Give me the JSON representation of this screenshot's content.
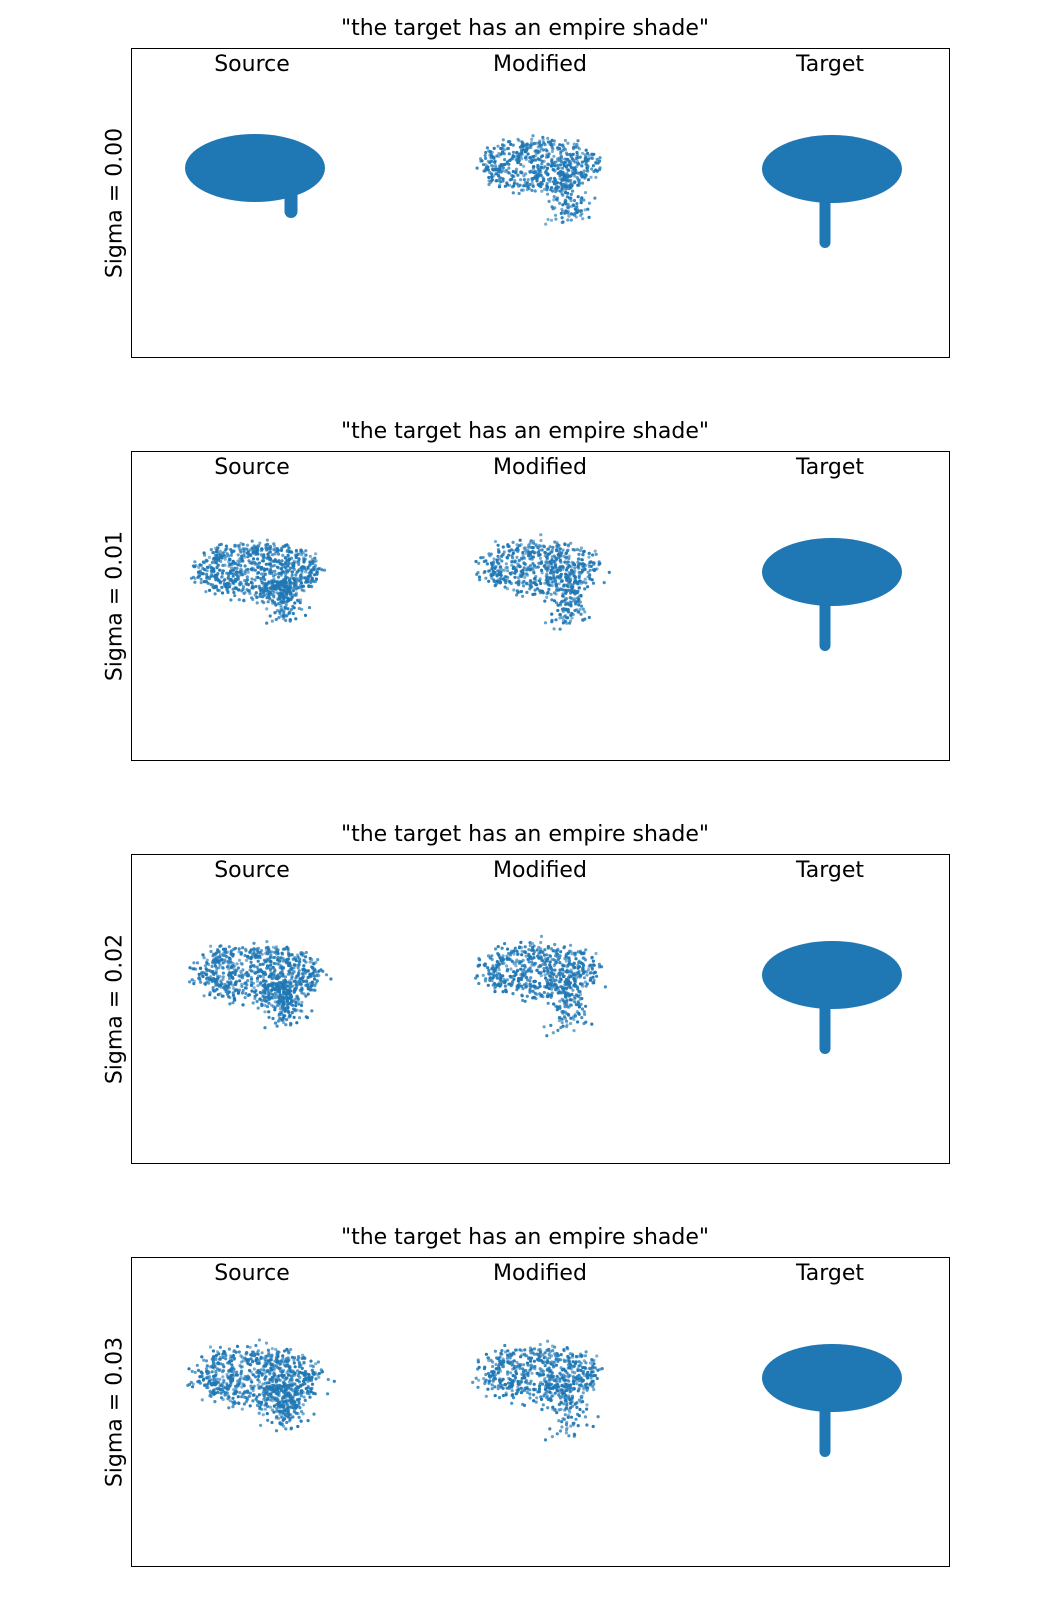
{
  "colors": {
    "point": "#1f77b4",
    "frame": "#000000",
    "background": "#ffffff"
  },
  "panels": [
    {
      "title": "\"the target has an empire shade\"",
      "sigma_label": "Sigma = 0.00",
      "sigma": 0.0,
      "columns": [
        "Source",
        "Modified",
        "Target"
      ]
    },
    {
      "title": "\"the target has an empire shade\"",
      "sigma_label": "Sigma = 0.01",
      "sigma": 0.01,
      "columns": [
        "Source",
        "Modified",
        "Target"
      ]
    },
    {
      "title": "\"the target has an empire shade\"",
      "sigma_label": "Sigma = 0.02",
      "sigma": 0.02,
      "columns": [
        "Source",
        "Modified",
        "Target"
      ]
    },
    {
      "title": "\"the target has an empire shade\"",
      "sigma_label": "Sigma = 0.03",
      "sigma": 0.03,
      "columns": [
        "Source",
        "Modified",
        "Target"
      ]
    }
  ]
}
